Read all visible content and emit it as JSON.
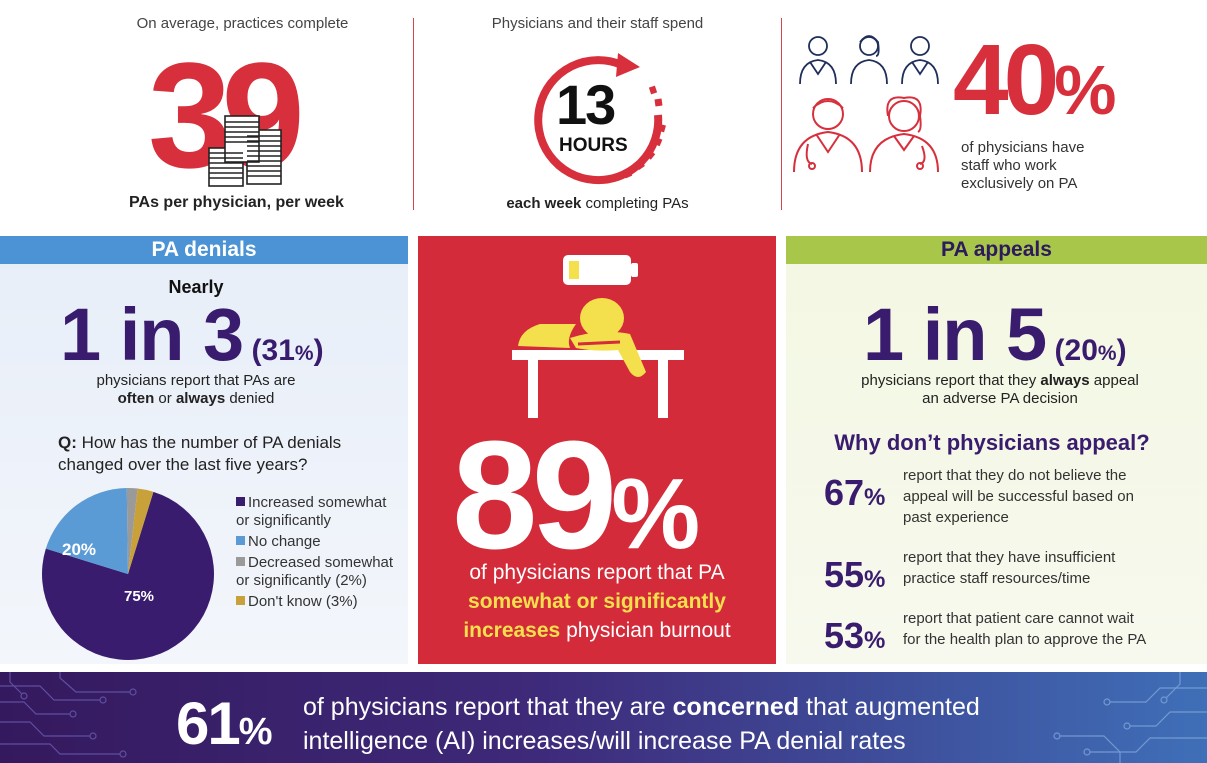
{
  "top": {
    "col1": {
      "caption_top": "On average, practices complete",
      "number": "39",
      "caption_bottom": "PAs per physician, per week"
    },
    "col2": {
      "caption_top": "Physicians and their staff spend",
      "number": "13",
      "unit": "HOURS",
      "caption_bottom_bold": "each week",
      "caption_bottom_rest": " completing PAs"
    },
    "col3": {
      "number": "40",
      "percent": "%",
      "caption": "of physicians have staff who work exclusively on PA"
    }
  },
  "denials": {
    "header": "PA denials",
    "nearly": "Nearly",
    "stat": "1 in 3",
    "stat_pct": "(31",
    "stat_pct_sign": "%",
    "stat_pct_close": ")",
    "line1": "physicians report that PAs are",
    "bold1": "often",
    "mid": " or ",
    "bold2": "always",
    "tail": " denied",
    "question_prefix": "Q:",
    "question": " How has the number of PA denials changed over the last five years?",
    "pie_labels": {
      "increased": "75%",
      "no_change": "20%"
    }
  },
  "chart_data": {
    "type": "pie",
    "categories": [
      "Increased somewhat or significantly",
      "No change",
      "Decreased somewhat or significantly (2%)",
      "Don't know (3%)"
    ],
    "values": [
      75,
      20,
      2,
      3
    ],
    "colors": [
      "#3a1c6e",
      "#5b9bd5",
      "#9a9a9a",
      "#c9a13a"
    ],
    "legend_placement": "right"
  },
  "burnout": {
    "number": "89",
    "percent": "%",
    "line1": "of physicians report that PA",
    "bold_yellow1": "somewhat or significantly",
    "bold_yellow2": "increases",
    "tail": " physician burnout"
  },
  "appeals": {
    "header": "PA appeals",
    "stat": "1 in 5",
    "stat_pct": "(20",
    "stat_pct_sign": "%",
    "stat_pct_close": ")",
    "line1_pre": "physicians report that they ",
    "line1_bold": "always",
    "line1_post": " appeal",
    "line2": "an adverse PA decision",
    "why": "Why don’t physicians appeal?",
    "reasons": [
      {
        "pct": "67",
        "text1": "report that they do not believe the",
        "text2": "appeal will be successful based on",
        "text3": "past experience"
      },
      {
        "pct": "55",
        "text1": "report that they have insufficient",
        "text2": "practice staff resources/time",
        "text3": ""
      },
      {
        "pct": "53",
        "text1": "report that patient care cannot wait",
        "text2": "for the health plan to approve the PA",
        "text3": ""
      }
    ]
  },
  "banner": {
    "number": "61",
    "percent": "%",
    "pre": "of physicians report that they are ",
    "bold": "concerned",
    "post": " that augmented",
    "line2": "intelligence (AI) increases/will increase PA denial rates"
  },
  "colors": {
    "red": "#d7303c",
    "purple": "#3a1c6e",
    "blue": "#4b93d4",
    "green": "#a8c64a",
    "yellow": "#f4e04d"
  }
}
